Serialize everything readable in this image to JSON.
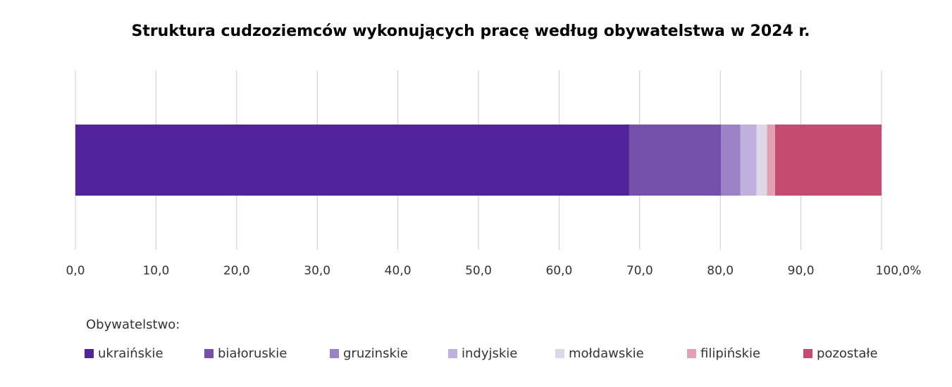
{
  "chart_data": {
    "type": "stacked-bar-horizontal",
    "title": "Struktura cudzoziemców wykonujących pracę według obywatelstwa w 2024 r.",
    "categories": [
      null
    ],
    "legend_title": "Obywatelstwo:",
    "series": [
      {
        "name": "ukraińskie",
        "color": "#52239a",
        "values": [
          68.7
        ]
      },
      {
        "name": "białoruskie",
        "color": "#744fab",
        "values": [
          11.4
        ]
      },
      {
        "name": "gruzinskie",
        "color": "#9b82c6",
        "values": [
          2.4
        ]
      },
      {
        "name": "indyjskie",
        "color": "#bfb0dd",
        "values": [
          2.0
        ]
      },
      {
        "name": "mołdawskie",
        "color": "#dcd8e8",
        "values": [
          1.3
        ]
      },
      {
        "name": "filipińskie",
        "color": "#e3a0b2",
        "values": [
          1.0
        ]
      },
      {
        "name": "pozostałe",
        "color": "#c44a70",
        "values": [
          13.2
        ]
      }
    ],
    "xlim": [
      0,
      100
    ],
    "xticks": [
      {
        "value": 0,
        "label": "0,0"
      },
      {
        "value": 10,
        "label": "10,0"
      },
      {
        "value": 20,
        "label": "20,0"
      },
      {
        "value": 30,
        "label": "30,0"
      },
      {
        "value": 40,
        "label": "40,0"
      },
      {
        "value": 50,
        "label": "50,0"
      },
      {
        "value": 60,
        "label": "60,0"
      },
      {
        "value": 70,
        "label": "70,0"
      },
      {
        "value": 80,
        "label": "80,0"
      },
      {
        "value": 90,
        "label": "90,0"
      },
      {
        "value": 100,
        "label": "100,0%"
      }
    ],
    "grid": true
  }
}
